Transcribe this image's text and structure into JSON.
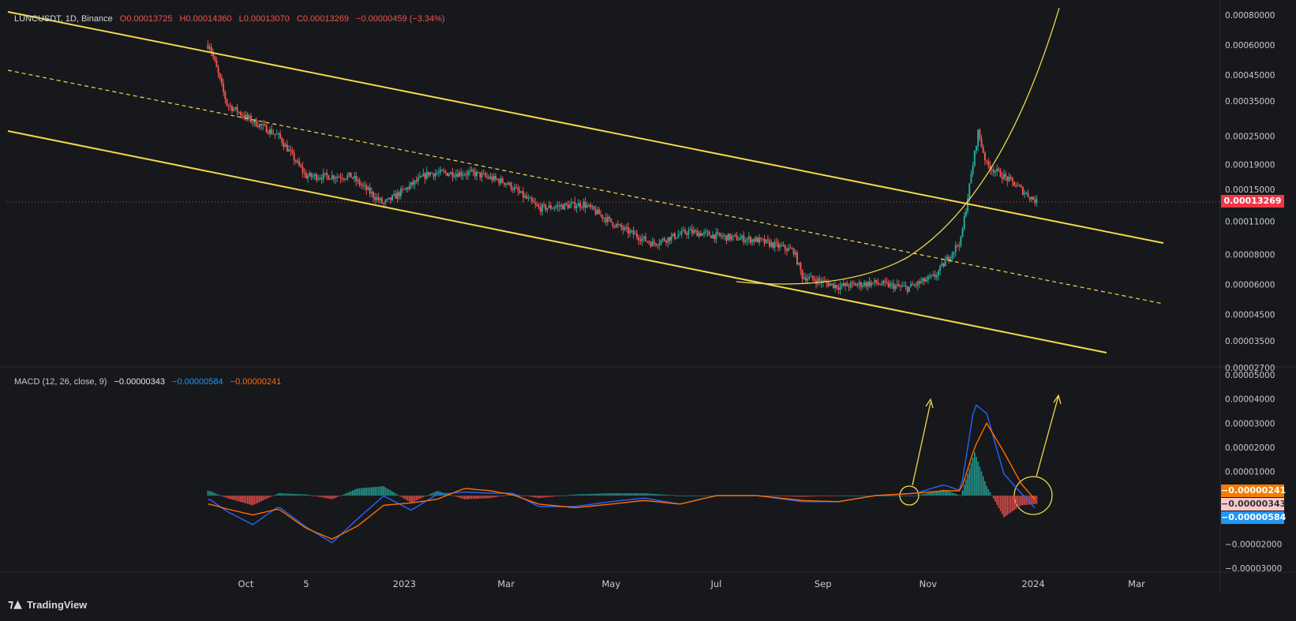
{
  "header": {
    "symbol": "LUNCUSDT, 1D, Binance",
    "open": "O0.00013725",
    "high": "H0.00014360",
    "low": "L0.00013070",
    "close": "C0.00013269",
    "change": "−0.00000459 (−3.34%)"
  },
  "macd_legend": {
    "label": "MACD (12, 26, close, 9)",
    "hist": "−0.00000343",
    "macd": "−0.00000584",
    "signal": "−0.00000241"
  },
  "tags": {
    "price": "0.00013269",
    "signal": "−0.00000241",
    "hist": "−0.00000343",
    "macd": "−0.00000584"
  },
  "footer": {
    "brand": "TradingView"
  },
  "colors": {
    "background": "#17181c",
    "grid": "#2a2d35",
    "up": "#26a69a",
    "down": "#ef5350",
    "channel": "#f2d94e",
    "macd_line": "#2962ff",
    "signal_line": "#ff6d00",
    "price_tag": "#f23645",
    "signal_tag": "#f57c00",
    "hist_tag": "#f8c9c9",
    "macd_tag": "#2196f3"
  },
  "chart_data": [
    {
      "type": "line",
      "title": "LUNCUSDT, 1D, Binance",
      "scale": "log",
      "ylim": [
        2.7e-05,
        0.0008
      ],
      "y_ticks": [
        "0.00080000",
        "0.00060000",
        "0.00045000",
        "0.00035000",
        "0.00025000",
        "0.00019000",
        "0.00015000",
        "0.00011000",
        "0.00008000",
        "0.00006000",
        "0.00004500",
        "0.00003500",
        "0.00002700"
      ],
      "x_ticks": [
        "Oct",
        "5",
        "2023",
        "Mar",
        "May",
        "Jul",
        "Sep",
        "Nov",
        "2024",
        "Mar"
      ],
      "x": [
        "2022-09-10",
        "2022-09-20",
        "2022-10-01",
        "2022-10-20",
        "2022-11-05",
        "2022-12-01",
        "2022-12-20",
        "2023-01-15",
        "2023-02-10",
        "2023-03-01",
        "2023-03-20",
        "2023-04-15",
        "2023-05-05",
        "2023-05-25",
        "2023-06-15",
        "2023-07-05",
        "2023-07-25",
        "2023-08-15",
        "2023-08-20",
        "2023-09-10",
        "2023-10-01",
        "2023-10-20",
        "2023-11-05",
        "2023-11-20",
        "2023-11-30",
        "2023-12-05",
        "2023-12-20",
        "2024-01-03"
      ],
      "series": [
        {
          "values": [
            0.0006,
            0.00034,
            0.0003,
            0.00025,
            0.00017,
            0.00017,
            0.00013,
            0.000175,
            0.000175,
            0.00016,
            0.000125,
            0.00013,
            0.000105,
            8.9e-05,
            0.0001,
            9.5e-05,
            9.2e-05,
            8.3e-05,
            6.5e-05,
            5.9e-05,
            6.1e-05,
            5.8e-05,
            6.5e-05,
            9.2e-05,
            0.00026,
            0.00019,
            0.00016,
            0.00013269
          ]
        }
      ],
      "current_price": 0.00013269
    },
    {
      "type": "line",
      "title": "MACD (12, 26, close, 9)",
      "ylim": [
        -3e-05,
        5e-05
      ],
      "y_ticks": [
        "0.00005000",
        "0.00004000",
        "0.00003000",
        "0.00002000",
        "0.00001000",
        "−0.00002000",
        "−0.00003000"
      ],
      "x": [
        "2022-09-10",
        "2022-09-20",
        "2022-10-05",
        "2022-10-20",
        "2022-11-05",
        "2022-11-20",
        "2022-12-05",
        "2022-12-20",
        "2023-01-05",
        "2023-01-20",
        "2023-02-05",
        "2023-02-20",
        "2023-03-05",
        "2023-03-20",
        "2023-04-10",
        "2023-05-01",
        "2023-05-20",
        "2023-06-10",
        "2023-07-01",
        "2023-07-25",
        "2023-08-20",
        "2023-09-10",
        "2023-10-01",
        "2023-10-25",
        "2023-11-10",
        "2023-11-20",
        "2023-11-28",
        "2023-12-05",
        "2023-12-15",
        "2023-12-25",
        "2024-01-03"
      ],
      "series": [
        {
          "name": "MACD",
          "values": [
            -1.5e-06,
            -6.5e-06,
            -1.2e-05,
            -4.5e-06,
            -1.3e-05,
            -1.95e-05,
            -9.5e-06,
            -1e-07,
            -6e-06,
            5e-07,
            1.5e-06,
            1e-06,
            1e-06,
            -4.5e-06,
            -4.5e-06,
            -2.5e-06,
            -1e-06,
            -3.5e-06,
            0,
            0,
            -2.5e-06,
            -2.5e-06,
            0,
            1e-06,
            4.5e-06,
            2e-06,
            3.8e-05,
            3.4e-05,
            9e-06,
            1e-06,
            -5.84e-06
          ]
        },
        {
          "name": "Signal",
          "values": [
            -3.5e-06,
            -5.5e-06,
            -8e-06,
            -5.5e-06,
            -1.35e-05,
            -1.8e-05,
            -1.25e-05,
            -4e-06,
            -3e-06,
            -1.5e-06,
            3e-06,
            2e-06,
            3e-07,
            -3.5e-06,
            -5e-06,
            -3.5e-06,
            -2e-06,
            -3.5e-06,
            0,
            0,
            -2e-06,
            -2.5e-06,
            0,
            1e-06,
            2e-06,
            2e-06,
            2e-05,
            3e-05,
            1.8e-05,
            5e-06,
            -2.41e-06
          ]
        }
      ],
      "histogram_last": -3.43e-06
    }
  ]
}
